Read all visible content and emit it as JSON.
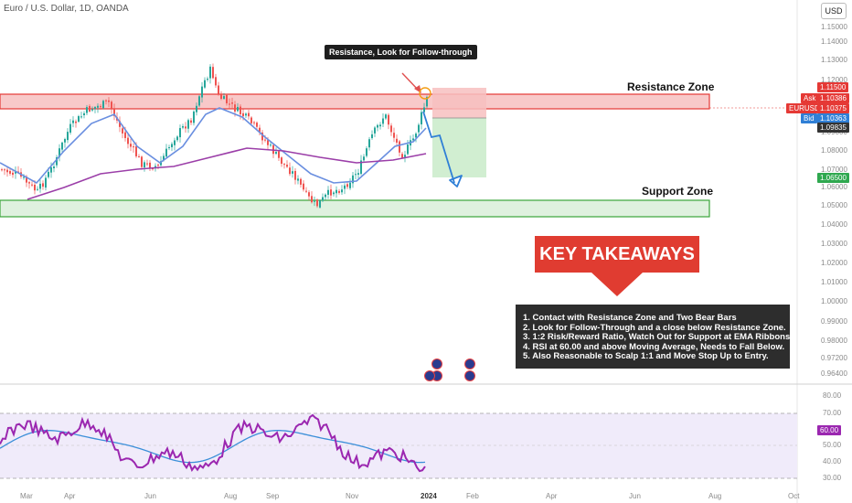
{
  "header": {
    "symbol_title": "Euro / U.S. Dollar, 1D, OANDA",
    "currency_button": "USD"
  },
  "price_axis": [
    "1.15000",
    "1.14000",
    "1.13000",
    "1.12000",
    "1.10000",
    "1.09000",
    "1.08000",
    "1.07000",
    "1.06000",
    "1.05000",
    "1.04000",
    "1.03000",
    "1.02000",
    "1.01000",
    "1.00000",
    "0.99000",
    "0.98000",
    "0.97200",
    "0.96400"
  ],
  "price_tags": {
    "resistance_top": "1.11500",
    "ask_label": "Ask",
    "ask": "1.10386",
    "symbol": "EURUSD",
    "last": "1.10375",
    "bid_label": "Bid",
    "bid": "1.10363",
    "entry": "1.09835",
    "target": "1.06500"
  },
  "time_axis": [
    "Mar",
    "Apr",
    "Jun",
    "Aug",
    "Sep",
    "Nov",
    "2024",
    "Feb",
    "Apr",
    "Jun",
    "Aug",
    "Oct"
  ],
  "rsi_axis": [
    "80.00",
    "70.00",
    "60.00",
    "50.00",
    "40.00",
    "30.00"
  ],
  "rsi_value": "60.00",
  "annotations": {
    "resistance_zone": "Resistance Zone",
    "support_zone": "Support Zone",
    "callout": "Resistance, Look for Follow-through",
    "key_takeaways_title": "KEY TAKEAWAYS",
    "takeaways": [
      "1. Contact with Resistance Zone and Two Bear Bars",
      "2. Look for Follow-Through and a close below Resistance Zone.",
      "3. 1:2 Risk/Reward Ratio, Watch Out for Support at EMA Ribbons.",
      "4. RSI at 60.00 and above Moving Average, Needs to Fall Below.",
      "5. Also Reasonable to Scalp 1:1 and Move Stop Up to Entry."
    ]
  },
  "colors": {
    "bull": "#26a69a",
    "bear": "#ef5350",
    "resistance_fill": "#f8c9c9",
    "resistance_border": "#e53935",
    "support_fill": "#dff1df",
    "support_border": "#3aa53a",
    "ema_fast": "#6a8fe0",
    "ema_slow": "#9b3ea8",
    "rsi_line": "#9b27b0",
    "rsi_ma": "#3b8fd9",
    "key_red": "#e03c31"
  }
}
